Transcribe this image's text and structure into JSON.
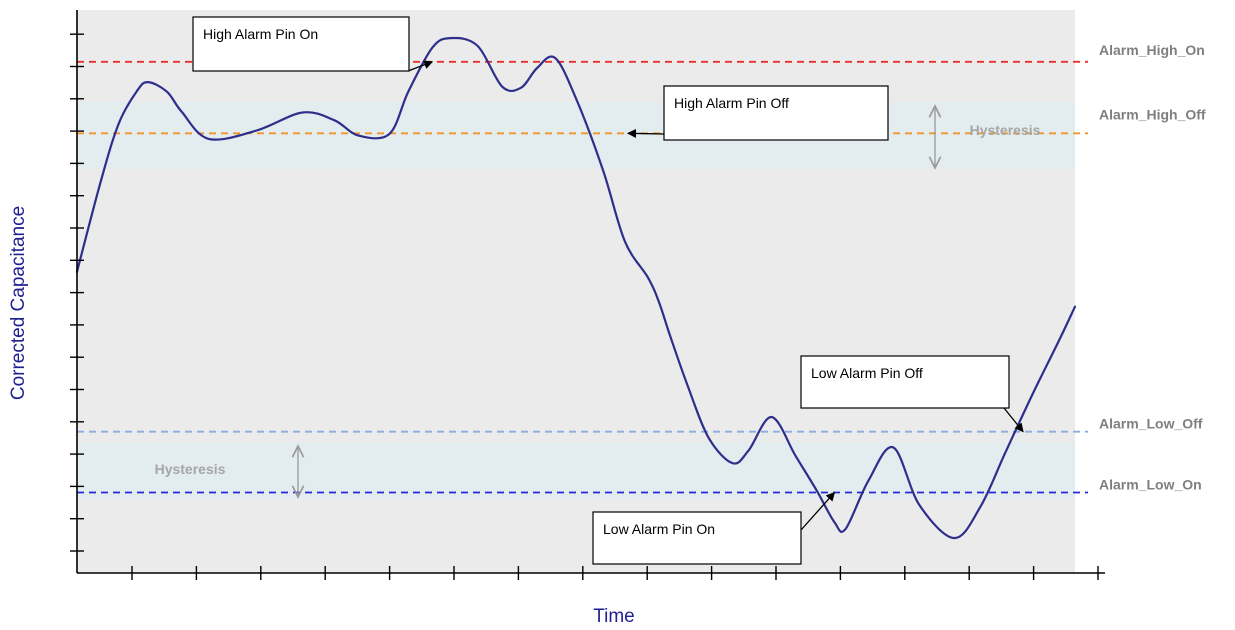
{
  "chart_data": {
    "type": "line",
    "xlabel": "Time",
    "ylabel": "Corrected Capacitance",
    "xlim": [
      0,
      100
    ],
    "ylim": [
      0,
      100
    ],
    "grid": false,
    "series": [
      {
        "color": "#2e2e8c",
        "x": [
          0,
          2.4,
          4.2,
          6.0,
          7.1,
          9.0,
          10.5,
          13.2,
          18.0,
          22.6,
          25.8,
          28.2,
          31.3,
          33.2,
          35.6,
          37.4,
          40.1,
          42.6,
          44.5,
          46.1,
          47.9,
          50.0,
          52.7,
          54.9,
          57.2,
          58.3,
          59.4,
          61.2,
          63.3,
          65.7,
          67.3,
          69.6,
          72.0,
          74.1,
          75.9,
          77.0,
          79.3,
          81.8,
          84.4,
          87.9,
          90.5,
          93.0,
          95.7,
          98.4,
          100
        ],
        "y": [
          53.5,
          69.7,
          79.9,
          85.6,
          87.2,
          85.5,
          81.9,
          77.1,
          78.6,
          81.8,
          80.4,
          77.7,
          78.0,
          85.5,
          93.3,
          95.0,
          93.7,
          86.4,
          86.2,
          89.7,
          91.5,
          84.3,
          71.6,
          58.9,
          52.5,
          48.2,
          42.3,
          33.2,
          24.0,
          19.5,
          21.8,
          27.7,
          20.8,
          14.7,
          9.0,
          7.8,
          16.4,
          22.3,
          12.1,
          6.2,
          11.7,
          21.3,
          31.6,
          41.3,
          47.3
        ]
      }
    ],
    "thresholds": [
      {
        "name": "Alarm_High_On",
        "y": 90.8,
        "color": "#e83030"
      },
      {
        "name": "Alarm_High_Off",
        "y": 78.1,
        "color": "#f0962a"
      },
      {
        "name": "Alarm_Low_Off",
        "y": 25.1,
        "color": "#8aaee0"
      },
      {
        "name": "Alarm_Low_On",
        "y": 14.3,
        "color": "#2828d8"
      }
    ],
    "hysteresis_label": "Hysteresis",
    "annotations": [
      {
        "text": "High Alarm Pin On",
        "arrow_to": [
          35.6,
          90.8
        ]
      },
      {
        "text": "High Alarm Pin Off",
        "arrow_to": [
          55.2,
          78.1
        ]
      },
      {
        "text": "Low Alarm Pin Off",
        "arrow_to": [
          94.8,
          25.1
        ]
      },
      {
        "text": "Low Alarm Pin On",
        "arrow_to": [
          75.9,
          14.3
        ]
      }
    ]
  }
}
